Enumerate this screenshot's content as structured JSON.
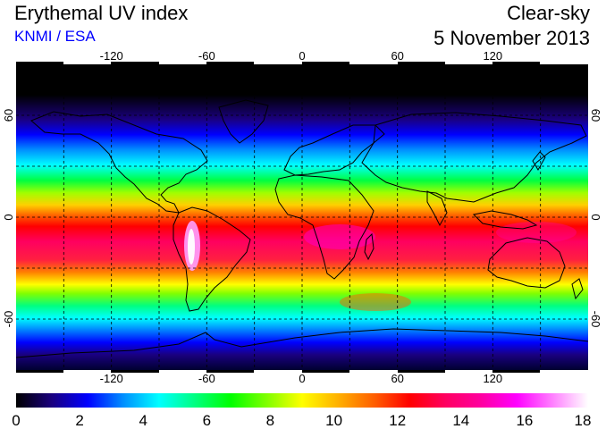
{
  "header": {
    "title": "Erythemal UV index",
    "source": "KNMI / ESA",
    "condition": "Clear-sky",
    "date": "5 November 2013"
  },
  "map": {
    "projection": "equirectangular",
    "lon_ticks": [
      "-120",
      "-60",
      "0",
      "60",
      "120"
    ],
    "lat_ticks": [
      "60",
      "0",
      "-60"
    ],
    "grid": "dashed, 30° spacing"
  },
  "colorbar": {
    "ticks": [
      "0",
      "2",
      "4",
      "6",
      "8",
      "10",
      "12",
      "14",
      "16",
      "18"
    ],
    "range": [
      0,
      18
    ],
    "colors": [
      "#000000",
      "#1a0080",
      "#0000ff",
      "#0090ff",
      "#00ffff",
      "#00ff80",
      "#00ff00",
      "#80ff00",
      "#ffff00",
      "#ffb000",
      "#ff6000",
      "#ff0000",
      "#ff0060",
      "#ff00a0",
      "#ff00ff",
      "#ff80ff",
      "#ffffff"
    ]
  }
}
